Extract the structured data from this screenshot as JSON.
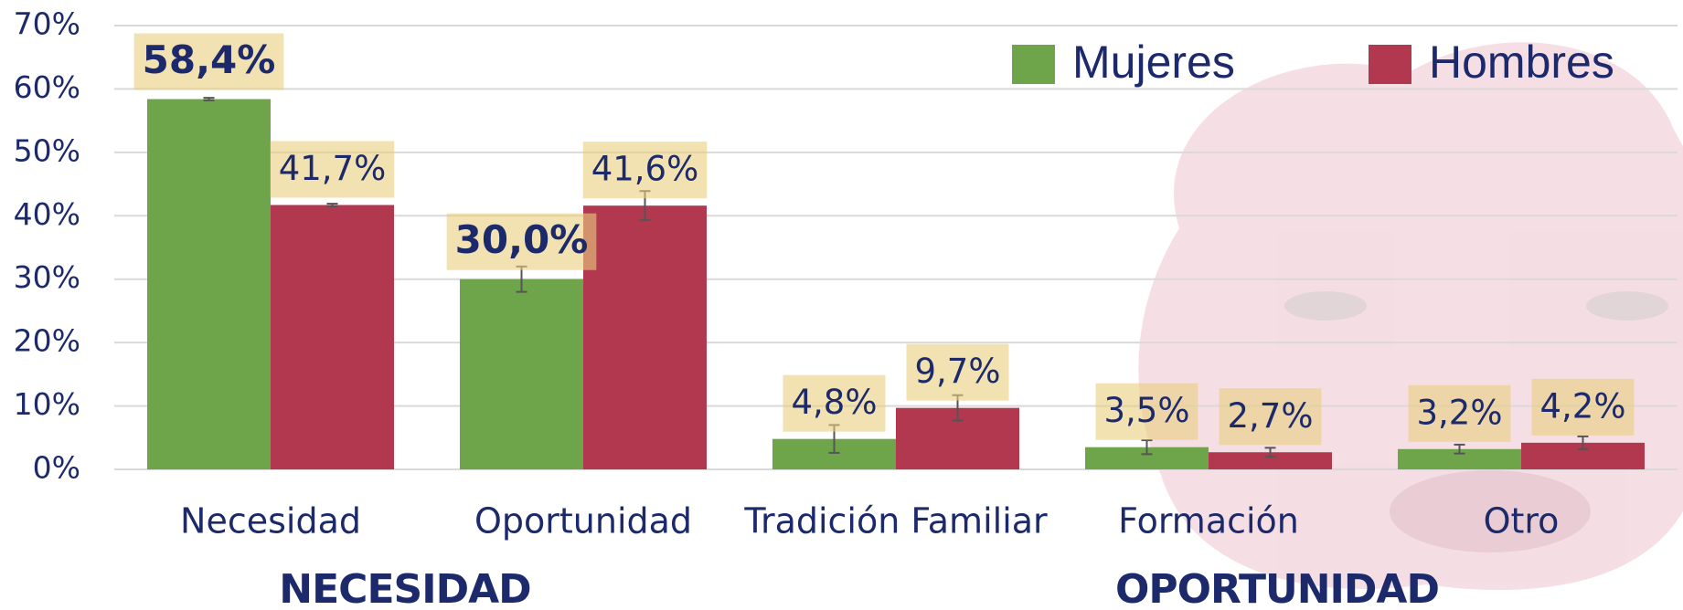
{
  "chart_data": {
    "type": "bar",
    "categories": [
      "Necesidad",
      "Oportunidad",
      "Tradición Familiar",
      "Formación",
      "Otro"
    ],
    "series": [
      {
        "name": "Mujeres",
        "color": "#6ea54b",
        "values": [
          58.4,
          30.0,
          4.8,
          3.5,
          3.2
        ],
        "value_labels": [
          "58,4%",
          "30,0%",
          "4,8%",
          "3,5%",
          "3,2%"
        ],
        "errors": [
          0.2,
          2.0,
          2.2,
          1.1,
          0.7
        ]
      },
      {
        "name": "Hombres",
        "color": "#b1384f",
        "values": [
          41.7,
          41.6,
          9.7,
          2.7,
          4.2
        ],
        "value_labels": [
          "41,7%",
          "41,6%",
          "9,7%",
          "2,7%",
          "4,2%"
        ],
        "errors": [
          0.2,
          2.3,
          2.0,
          0.7,
          1.0
        ]
      }
    ],
    "ylim": [
      0,
      70
    ],
    "yticks": [
      {
        "value": 0,
        "label": "0%"
      },
      {
        "value": 10,
        "label": "10%"
      },
      {
        "value": 20,
        "label": "20%"
      },
      {
        "value": 30,
        "label": "30%"
      },
      {
        "value": 40,
        "label": "40%"
      },
      {
        "value": 50,
        "label": "50%"
      },
      {
        "value": 60,
        "label": "60%"
      },
      {
        "value": 70,
        "label": "70%"
      }
    ],
    "grid": true,
    "legend": "top-right",
    "group_labels": [
      "NECESIDAD",
      "OPORTUNIDAD"
    ]
  }
}
